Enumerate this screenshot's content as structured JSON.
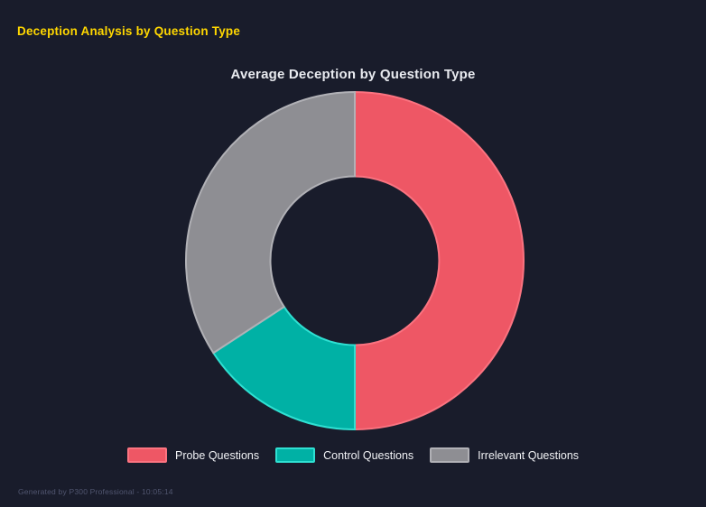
{
  "page": {
    "title": "Deception Analysis by Question Type",
    "footer": "Generated by P300 Professional - 10:05:14"
  },
  "chart_data": {
    "type": "pie",
    "variant": "donut",
    "title": "Average Deception by Question Type",
    "categories": [
      "Probe Questions",
      "Control Questions",
      "Irrelevant Questions"
    ],
    "values_pct": [
      50,
      15.8,
      34.2
    ],
    "start_angle_deg": 0,
    "direction": "clockwise",
    "inner_radius_ratio": 0.5,
    "legend_position": "bottom",
    "slice_colors": [
      "#ee5765",
      "#00b1a5",
      "#8e8e93"
    ],
    "slice_border_colors": [
      "#fb7380",
      "#2fe0d2",
      "#b1b1b6"
    ]
  },
  "colors": {
    "background": "#191c2b",
    "page_title": "#ffd700",
    "chart_title": "#e9ebf0",
    "legend_text": "#f2f3f6",
    "footer_text": "#515670"
  }
}
